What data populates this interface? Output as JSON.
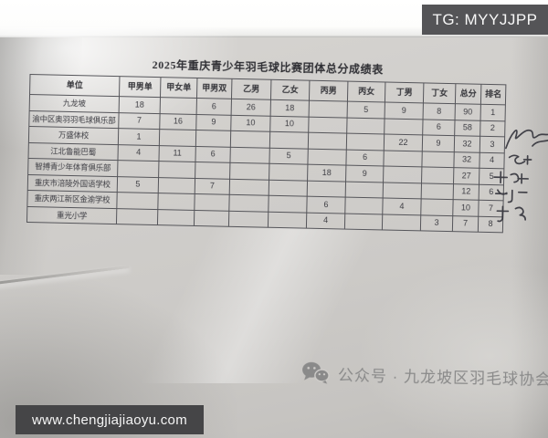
{
  "watermarks": {
    "tg_label": "TG: MYYJJPP",
    "site_url": "www.chengjiajiaoyu.com"
  },
  "document": {
    "title": "2025年重庆青少年羽毛球比赛团体总分成绩表",
    "table": {
      "columns": [
        "单位",
        "甲男单",
        "甲女单",
        "甲男双",
        "乙男",
        "乙女",
        "丙男",
        "丙女",
        "丁男",
        "丁女",
        "总分",
        "排名"
      ],
      "rows": [
        {
          "unit": "九龙坡",
          "values": [
            "18",
            "",
            "6",
            "26",
            "18",
            "",
            "5",
            "9",
            "8",
            "90",
            "1"
          ]
        },
        {
          "unit": "渝中区奥羽羽毛球俱乐部",
          "values": [
            "7",
            "16",
            "9",
            "10",
            "10",
            "",
            "",
            "",
            "6",
            "58",
            "2"
          ]
        },
        {
          "unit": "万盛体校",
          "values": [
            "1",
            "",
            "",
            "",
            "",
            "",
            "",
            "22",
            "9",
            "32",
            "3"
          ]
        },
        {
          "unit": "江北鲁能巴蜀",
          "values": [
            "4",
            "11",
            "6",
            "",
            "5",
            "",
            "6",
            "",
            "",
            "32",
            "4"
          ]
        },
        {
          "unit": "智搏青少年体育俱乐部",
          "values": [
            "",
            "",
            "",
            "",
            "",
            "18",
            "9",
            "",
            "",
            "27",
            "5"
          ]
        },
        {
          "unit": "重庆市涪陵外国语学校",
          "values": [
            "5",
            "",
            "7",
            "",
            "",
            "",
            "",
            "",
            "",
            "12",
            "6"
          ]
        },
        {
          "unit": "重庆两江新区金渝学校",
          "values": [
            "",
            "",
            "",
            "",
            "",
            "6",
            "",
            "4",
            "",
            "10",
            "7"
          ]
        },
        {
          "unit": "重光小学",
          "values": [
            "",
            "",
            "",
            "",
            "",
            "4",
            "",
            "",
            "3",
            "7",
            "8"
          ]
        }
      ]
    },
    "handwriting_note": "签字涂写（字迹潦草）"
  },
  "footer": {
    "wechat_label": "公众号 · 九龙坡区羽毛球协会"
  },
  "colors": {
    "tg_box": "#545457",
    "url_box": "#454547",
    "paper": "#cfcdca",
    "ink": "#3c3c42",
    "footer_text": "#8a8a8a"
  }
}
